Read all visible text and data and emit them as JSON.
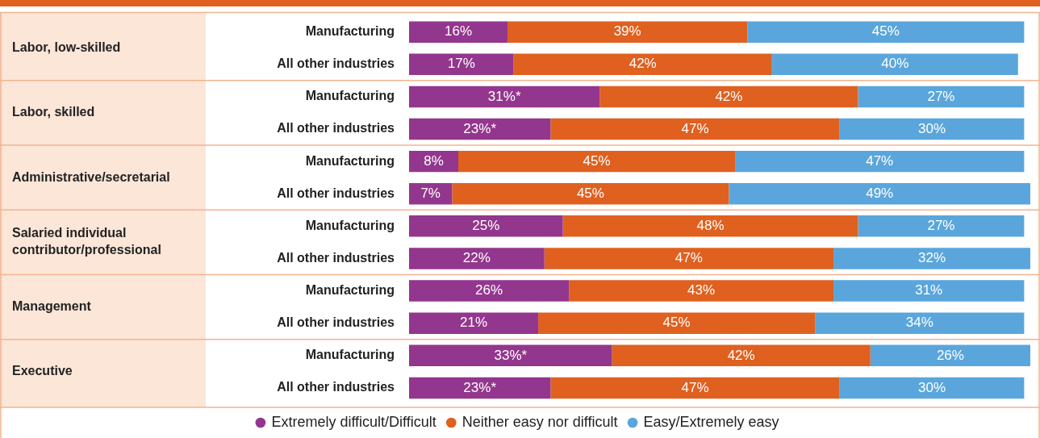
{
  "chart_data": {
    "type": "bar",
    "orientation": "horizontal",
    "stacked": true,
    "legend": "bottom",
    "tick_labels": "y",
    "xlim": [
      0,
      101
    ],
    "categories": [
      "Manufacturing",
      "All other industries",
      "Manufacturing",
      "All other industries",
      "Manufacturing",
      "All other industries",
      "Manufacturing",
      "All other industries",
      "Manufacturing",
      "All other industries",
      "Manufacturing",
      "All other industries"
    ],
    "annotations": [
      "Labor, low-skilled",
      "Labor, skilled",
      "Administrative/secretarial",
      "Salaried individual contributor/professional",
      "Management",
      "Executive"
    ],
    "series": [
      {
        "name": "Extremely difficult/Difficult",
        "color": "#93368d",
        "values": [
          16,
          17,
          31,
          23,
          8,
          7,
          25,
          22,
          26,
          21,
          33,
          23
        ],
        "value_labels": [
          "16%",
          "17%",
          "31%*",
          "23%*",
          "8%",
          "7%",
          "25%",
          "22%",
          "26%",
          "21%",
          "33%*",
          "23%*"
        ]
      },
      {
        "name": "Neither easy nor difficult",
        "color": "#e0601f",
        "values": [
          39,
          42,
          42,
          47,
          45,
          45,
          48,
          47,
          43,
          45,
          42,
          47
        ],
        "value_labels": [
          "39%",
          "42%",
          "42%",
          "47%",
          "45%",
          "45%",
          "48%",
          "47%",
          "43%",
          "45%",
          "42%",
          "47%"
        ]
      },
      {
        "name": "Easy/Extremely easy",
        "color": "#5aa6dc",
        "values": [
          45,
          40,
          27,
          30,
          47,
          49,
          27,
          32,
          31,
          34,
          26,
          30
        ],
        "value_labels": [
          "45%",
          "40%",
          "27%",
          "30%",
          "47%",
          "49%",
          "27%",
          "32%",
          "31%",
          "34%",
          "26%",
          "30%"
        ]
      }
    ]
  }
}
